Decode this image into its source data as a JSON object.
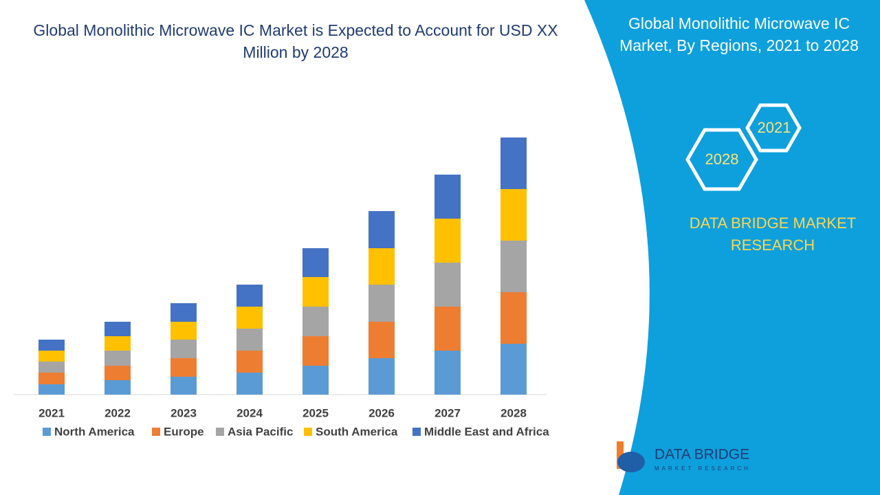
{
  "chart_data": {
    "type": "bar",
    "stacked": true,
    "title": "Global Monolithic Microwave IC Market is Expected to Account for USD XX Million by 2028",
    "categories": [
      "2021",
      "2022",
      "2023",
      "2024",
      "2025",
      "2026",
      "2027",
      "2028"
    ],
    "series": [
      {
        "name": "North America",
        "color": "#5b9bd5",
        "values": [
          15,
          21,
          26,
          32,
          42,
          53,
          64,
          74
        ]
      },
      {
        "name": "Europe",
        "color": "#ed7d31",
        "values": [
          17,
          21,
          27,
          32,
          43,
          53,
          64,
          75
        ]
      },
      {
        "name": "Asia Pacific",
        "color": "#a5a5a5",
        "values": [
          16,
          22,
          27,
          32,
          43,
          54,
          64,
          75
        ]
      },
      {
        "name": "South America",
        "color": "#ffc000",
        "values": [
          16,
          21,
          26,
          32,
          43,
          53,
          64,
          75
        ]
      },
      {
        "name": "Middle East and Africa",
        "color": "#4472c4",
        "values": [
          16,
          21,
          27,
          32,
          42,
          54,
          64,
          75
        ]
      }
    ]
  },
  "panel": {
    "title": "Global Monolithic Microwave IC Market, By Regions, 2021 to 2028",
    "hex_start": "2021",
    "hex_end": "2028",
    "brand_lines": [
      "DATA BRIDGE MARKET",
      "RESEARCH"
    ],
    "logo_name": "DATA BRIDGE",
    "logo_sub": "MARKET RESEARCH"
  }
}
